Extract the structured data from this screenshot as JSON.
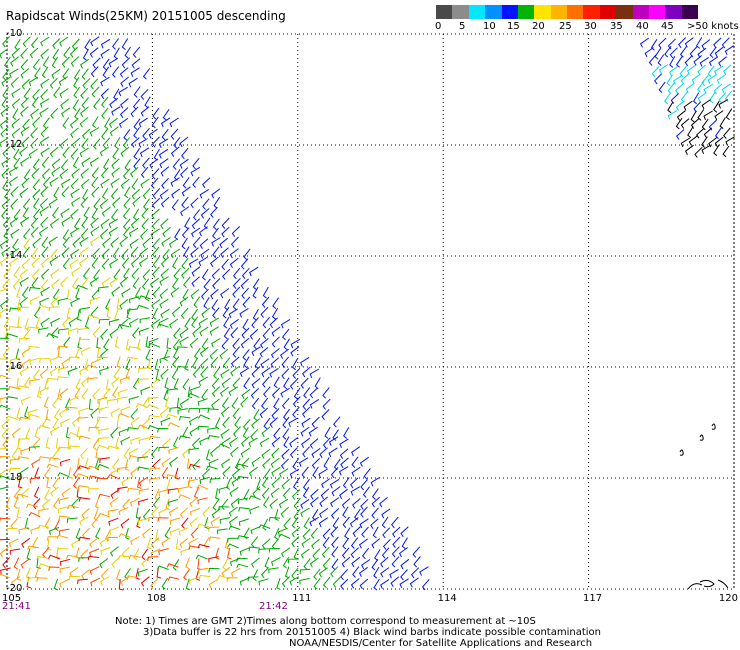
{
  "title": "Rapidscat Winds(25KM) 20151005 descending",
  "colorbar": {
    "labels": [
      "0",
      "5",
      "10",
      "15",
      "20",
      "25",
      "30",
      "35",
      "40",
      "45",
      ">50 knots"
    ],
    "colors": [
      "#4a4a4a",
      "#8c8c8c",
      "#00e8ff",
      "#0090ff",
      "#0014ff",
      "#00b400",
      "#ffe400",
      "#ffb400",
      "#ff7000",
      "#ff2000",
      "#e00000",
      "#7a3010",
      "#c000c0",
      "#ff00ff",
      "#8000c0",
      "#3c0050"
    ]
  },
  "notes": {
    "line1": "Note: 1) Times are GMT 2)Times along bottom correspond to measurement at ~10S",
    "line2": "3)Data buffer is 22 hrs from 20151005 4) Black wind barbs indicate possible contamination",
    "line3": "NOAA/NESDIS/Center for Satellite Applications and Research"
  },
  "chart_data": {
    "type": "scatter",
    "title": "Rapidscat Winds(25KM) 20151005 descending",
    "xlabel": "",
    "ylabel": "",
    "xlim": [
      105,
      120
    ],
    "ylim": [
      -20,
      -10
    ],
    "grid": true,
    "x_ticks": [
      "105",
      "108",
      "111",
      "114",
      "117",
      "120"
    ],
    "y_ticks": [
      "-10",
      "-12",
      "-14",
      "-16",
      "-18",
      "-20"
    ],
    "time_labels": [
      {
        "lon": 105,
        "label": "21:41"
      },
      {
        "lon": 110.2,
        "label": "21:42"
      }
    ],
    "swaths": [
      {
        "name": "main descending swath",
        "lat_range": [
          -20,
          -10
        ],
        "west_lon": 105,
        "east_lon_at_north": 107.6,
        "east_lon_at_south": 114,
        "speed_bands_knots": [
          {
            "range": [
              10,
              15
            ],
            "color": "blue",
            "region": "northeastern edge"
          },
          {
            "range": [
              15,
              20
            ],
            "color": "green",
            "region": "central"
          },
          {
            "range": [
              20,
              25
            ],
            "color": "yellow",
            "region": "southwest"
          },
          {
            "range": [
              25,
              35
            ],
            "color": "orange/red",
            "region": "far southwest"
          }
        ]
      },
      {
        "name": "partial swath near 119E",
        "lat_range": [
          -12,
          -10
        ],
        "lon_range": [
          118,
          120
        ],
        "speed_bands_knots": [
          {
            "range": [
              5,
              10
            ],
            "color": "cyan"
          },
          {
            "range": [
              10,
              15
            ],
            "color": "blue"
          },
          {
            "range": [
              0,
              50
            ],
            "color": "black",
            "note": "possible contamination"
          }
        ]
      }
    ]
  }
}
